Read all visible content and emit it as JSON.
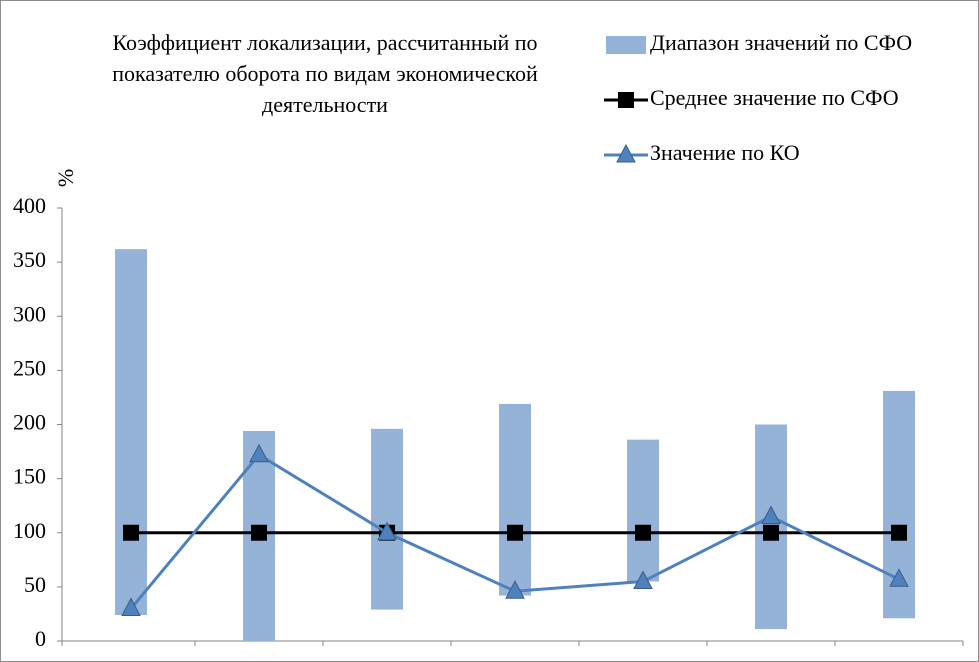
{
  "chart_data": {
    "type": "range-line",
    "title": [
      "Коэффициент локализации, рассчитанный по",
      "показателю оборота по видам экономической",
      "деятельности"
    ],
    "y_label": "%",
    "categories": [
      null,
      null,
      null,
      null,
      null,
      null,
      null
    ],
    "series": [
      {
        "name": "Диапазон значений по СФО",
        "color": "#95b3d7",
        "kind": "range",
        "low": [
          24,
          0,
          29,
          42,
          55,
          11,
          21
        ],
        "high": [
          362,
          194,
          196,
          219,
          186,
          200,
          231
        ]
      },
      {
        "name": "Среднее значение по СФО",
        "color": "#000000",
        "kind": "line",
        "marker": "square",
        "values": [
          100,
          100,
          100,
          100,
          100,
          100,
          100
        ]
      },
      {
        "name": "Значение по КО",
        "color": "#4f81bd",
        "kind": "line",
        "marker": "triangle",
        "values": [
          30,
          172,
          100,
          46,
          55,
          115,
          57
        ]
      }
    ],
    "ylim": [
      0,
      400
    ],
    "yticks": [
      0,
      50,
      100,
      150,
      200,
      250,
      300,
      350,
      400
    ],
    "grid": false,
    "legend": "top-right"
  }
}
